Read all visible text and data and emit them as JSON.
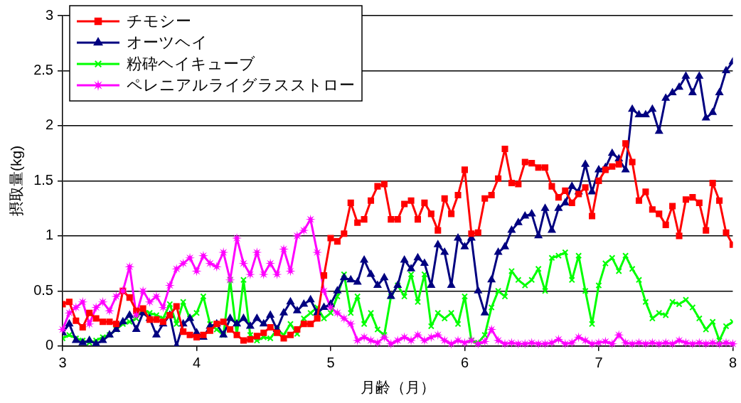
{
  "chart_data": {
    "type": "line",
    "xlabel": "月齢（月）",
    "ylabel": "摂取量(kg)",
    "x": [
      3.0,
      3.05,
      3.1,
      3.15,
      3.2,
      3.25,
      3.3,
      3.35,
      3.4,
      3.45,
      3.5,
      3.55,
      3.6,
      3.65,
      3.7,
      3.75,
      3.8,
      3.85,
      3.9,
      3.95,
      4.0,
      4.05,
      4.1,
      4.15,
      4.2,
      4.25,
      4.3,
      4.35,
      4.4,
      4.45,
      4.5,
      4.55,
      4.6,
      4.65,
      4.7,
      4.75,
      4.8,
      4.85,
      4.9,
      4.95,
      5.0,
      5.05,
      5.1,
      5.15,
      5.2,
      5.25,
      5.3,
      5.35,
      5.4,
      5.45,
      5.5,
      5.55,
      5.6,
      5.65,
      5.7,
      5.75,
      5.8,
      5.85,
      5.9,
      5.95,
      6.0,
      6.05,
      6.1,
      6.15,
      6.2,
      6.25,
      6.3,
      6.35,
      6.4,
      6.45,
      6.5,
      6.55,
      6.6,
      6.65,
      6.7,
      6.75,
      6.8,
      6.85,
      6.9,
      6.95,
      7.0,
      7.05,
      7.1,
      7.15,
      7.2,
      7.25,
      7.3,
      7.35,
      7.4,
      7.45,
      7.5,
      7.55,
      7.6,
      7.65,
      7.7,
      7.75,
      7.8,
      7.85,
      7.9,
      7.95,
      8.0
    ],
    "xlim": [
      3,
      8
    ],
    "xticks": [
      3,
      4,
      5,
      6,
      7,
      8
    ],
    "ylim": [
      0,
      3
    ],
    "yticks": [
      0,
      0.5,
      1,
      1.5,
      2,
      2.5,
      3
    ],
    "grid": "y",
    "legend": "top left",
    "line_style": "solid",
    "series": [
      {
        "name": "チモシー",
        "color": "#ff0000",
        "marker": "square",
        "values": [
          0.38,
          0.4,
          0.23,
          0.17,
          0.3,
          0.25,
          0.22,
          0.22,
          0.2,
          0.5,
          0.44,
          0.32,
          0.34,
          0.24,
          0.24,
          0.22,
          0.28,
          0.36,
          0.13,
          0.1,
          0.08,
          0.1,
          0.14,
          0.2,
          0.22,
          0.15,
          0.1,
          0.05,
          0.06,
          0.09,
          0.12,
          0.17,
          0.12,
          0.07,
          0.1,
          0.15,
          0.2,
          0.2,
          0.25,
          0.64,
          0.98,
          0.95,
          1.02,
          1.3,
          1.12,
          1.15,
          1.32,
          1.45,
          1.47,
          1.15,
          1.15,
          1.29,
          1.32,
          1.15,
          1.3,
          1.2,
          1.05,
          1.34,
          1.2,
          1.37,
          1.6,
          1.02,
          1.03,
          1.34,
          1.37,
          1.52,
          1.79,
          1.48,
          1.47,
          1.67,
          1.66,
          1.62,
          1.62,
          1.45,
          1.35,
          1.41,
          1.3,
          1.38,
          1.44,
          1.18,
          1.5,
          1.6,
          1.63,
          1.65,
          1.84,
          1.67,
          1.32,
          1.4,
          1.24,
          1.2,
          1.1,
          1.27,
          1.0,
          1.33,
          1.35,
          1.3,
          1.05,
          1.48,
          1.32,
          1.03,
          0.92
        ]
      },
      {
        "name": "オーツヘイ",
        "color": "#000080",
        "marker": "triangle",
        "values": [
          0.12,
          0.2,
          0.05,
          0.03,
          0.05,
          0.02,
          0.05,
          0.1,
          0.15,
          0.22,
          0.28,
          0.15,
          0.3,
          0.25,
          0.1,
          0.2,
          0.28,
          0.0,
          0.2,
          0.25,
          0.12,
          0.08,
          0.18,
          0.2,
          0.1,
          0.25,
          0.2,
          0.25,
          0.18,
          0.25,
          0.2,
          0.28,
          0.15,
          0.3,
          0.4,
          0.32,
          0.38,
          0.42,
          0.3,
          0.35,
          0.38,
          0.5,
          0.62,
          0.6,
          0.58,
          0.78,
          0.65,
          0.55,
          0.62,
          0.45,
          0.55,
          0.78,
          0.7,
          0.8,
          0.75,
          0.55,
          0.92,
          0.85,
          0.55,
          0.98,
          0.9,
          0.98,
          0.5,
          0.3,
          0.6,
          0.85,
          0.9,
          1.05,
          1.12,
          1.18,
          1.2,
          1.0,
          1.25,
          1.05,
          1.25,
          1.3,
          1.45,
          1.4,
          1.65,
          1.4,
          1.6,
          1.62,
          1.75,
          1.7,
          1.6,
          2.15,
          2.1,
          2.1,
          2.15,
          1.95,
          2.25,
          2.3,
          2.35,
          2.45,
          2.3,
          2.45,
          2.07,
          2.12,
          2.3,
          2.5,
          2.58
        ]
      },
      {
        "name": "粉砕ヘイキューブ",
        "color": "#00ff00",
        "marker": "cross",
        "values": [
          0.07,
          0.1,
          0.07,
          0.05,
          0.03,
          0.05,
          0.08,
          0.1,
          0.15,
          0.2,
          0.22,
          0.25,
          0.33,
          0.3,
          0.28,
          0.25,
          0.38,
          0.2,
          0.4,
          0.25,
          0.3,
          0.45,
          0.2,
          0.15,
          0.1,
          0.6,
          0.1,
          0.6,
          0.1,
          0.05,
          0.08,
          0.07,
          0.15,
          0.1,
          0.2,
          0.11,
          0.25,
          0.3,
          0.35,
          0.25,
          0.3,
          0.45,
          0.65,
          0.3,
          0.45,
          0.2,
          0.3,
          0.15,
          0.1,
          0.45,
          0.55,
          0.45,
          0.65,
          0.4,
          0.65,
          0.18,
          0.3,
          0.25,
          0.3,
          0.2,
          0.45,
          0.05,
          0.03,
          0.1,
          0.35,
          0.5,
          0.45,
          0.68,
          0.6,
          0.55,
          0.6,
          0.7,
          0.5,
          0.8,
          0.82,
          0.85,
          0.6,
          0.82,
          0.5,
          0.2,
          0.55,
          0.75,
          0.8,
          0.68,
          0.82,
          0.7,
          0.6,
          0.4,
          0.25,
          0.3,
          0.28,
          0.4,
          0.38,
          0.42,
          0.35,
          0.25,
          0.15,
          0.22,
          0.05,
          0.18,
          0.22
        ]
      },
      {
        "name": "ペレニアルライグラスストロー",
        "color": "#ff00ff",
        "marker": "star",
        "values": [
          0.15,
          0.3,
          0.35,
          0.4,
          0.2,
          0.35,
          0.4,
          0.32,
          0.45,
          0.5,
          0.72,
          0.28,
          0.5,
          0.4,
          0.45,
          0.35,
          0.55,
          0.7,
          0.75,
          0.8,
          0.68,
          0.82,
          0.75,
          0.72,
          0.85,
          0.6,
          0.98,
          0.75,
          0.65,
          0.85,
          0.65,
          0.75,
          0.65,
          0.88,
          0.68,
          1.0,
          1.05,
          1.15,
          0.85,
          0.5,
          0.35,
          0.3,
          0.25,
          0.2,
          0.05,
          0.08,
          0.05,
          0.03,
          0.08,
          0.02,
          0.05,
          0.08,
          0.05,
          0.1,
          0.05,
          0.08,
          0.1,
          0.05,
          0.02,
          0.05,
          0.03,
          0.05,
          0.02,
          0.04,
          0.15,
          0.05,
          0.02,
          0.03,
          0.02,
          0.02,
          0.03,
          0.02,
          0.02,
          0.03,
          0.06,
          0.02,
          0.03,
          0.08,
          0.05,
          0.02,
          0.03,
          0.04,
          0.02,
          0.1,
          0.03,
          0.02,
          0.03,
          0.02,
          0.03,
          0.02,
          0.03,
          0.02,
          0.05,
          0.03,
          0.02,
          0.03,
          0.02,
          0.03,
          0.02,
          0.03,
          0.02
        ]
      }
    ]
  }
}
